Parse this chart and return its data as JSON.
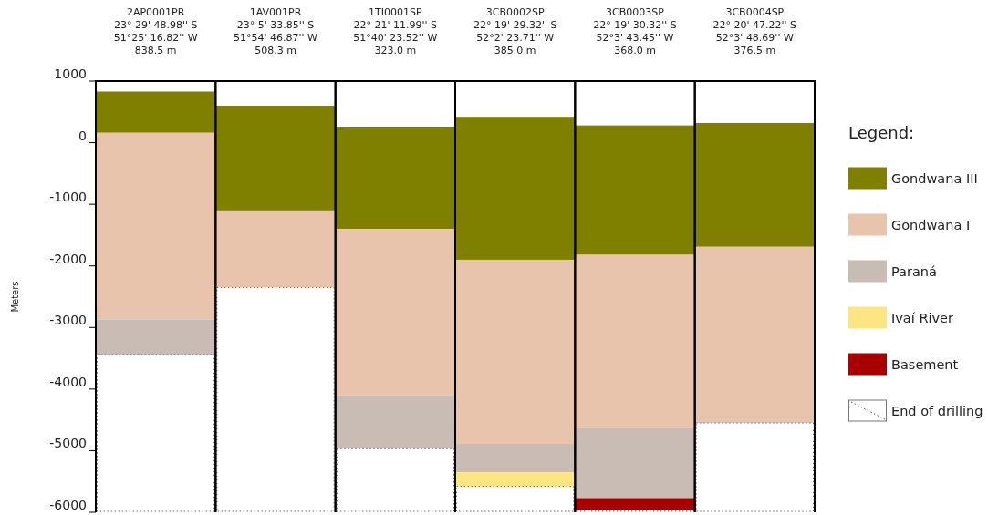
{
  "chart_data": {
    "type": "bar",
    "categories": [
      "2AP0001PR\n23° 29' 48.98'' S\n51°25' 16.82'' W\n838.5 m",
      "1AV001PR\n23° 5' 33.85'' S\n51°54' 46.87'' W\n508.3 m",
      "1TI0001SP\n22° 21' 11.99'' S\n51°40' 23.52'' W\n323.0 m",
      "3CB0002SP\n22° 19' 29.32'' S\n52°2' 23.71'' W\n385.0 m",
      "3CB0003SP\n22° 19' 30.32'' S\n52°3' 43.45'' W\n368.0 m",
      "3CB0004SP\n22° 20' 47.22'' S\n52°3' 48.69'' W\n376.5 m"
    ],
    "ylabel": "Meters",
    "legend_title": "Legend:",
    "legend": "right",
    "grid": false,
    "ylim": [
      -6000,
      1000
    ],
    "yticks": [
      1000,
      0,
      -1000,
      -2000,
      -3000,
      -4000,
      -5000,
      -6000
    ],
    "series": [
      {
        "name": "Gondwana III",
        "color": "#808000",
        "base": [
          830,
          600,
          260,
          420,
          280,
          320
        ],
        "values": [
          -670,
          -1700,
          -1660,
          -2320,
          -2100,
          -2010
        ]
      },
      {
        "name": "Gondwana I",
        "color": "#e8c4ac",
        "base": [
          160,
          -1100,
          -1400,
          -1900,
          -1820,
          -1690
        ],
        "values": [
          -3030,
          -1250,
          -2700,
          -2990,
          -2810,
          -2860
        ]
      },
      {
        "name": "Paraná",
        "color": "#c8bcb5",
        "base": [
          -2870,
          null,
          -4100,
          -4890,
          -4630,
          null
        ],
        "values": [
          -570,
          null,
          -870,
          -460,
          -1140,
          null
        ]
      },
      {
        "name": "Ivaí River",
        "color": "#fde584",
        "base": [
          null,
          null,
          null,
          -5350,
          null,
          null
        ],
        "values": [
          null,
          null,
          null,
          -230,
          null,
          null
        ]
      },
      {
        "name": "Basement",
        "color": "#a80000",
        "base": [
          null,
          null,
          null,
          null,
          -5770,
          null
        ],
        "values": [
          null,
          null,
          null,
          null,
          -200,
          null
        ]
      },
      {
        "name": "End of drilling",
        "color": "#ffffff",
        "base": [
          -3440,
          -2350,
          -4970,
          -5580,
          -5970,
          -4550
        ],
        "values": [
          -2560,
          -3650,
          -1030,
          -420,
          -30,
          -1450
        ]
      }
    ]
  }
}
